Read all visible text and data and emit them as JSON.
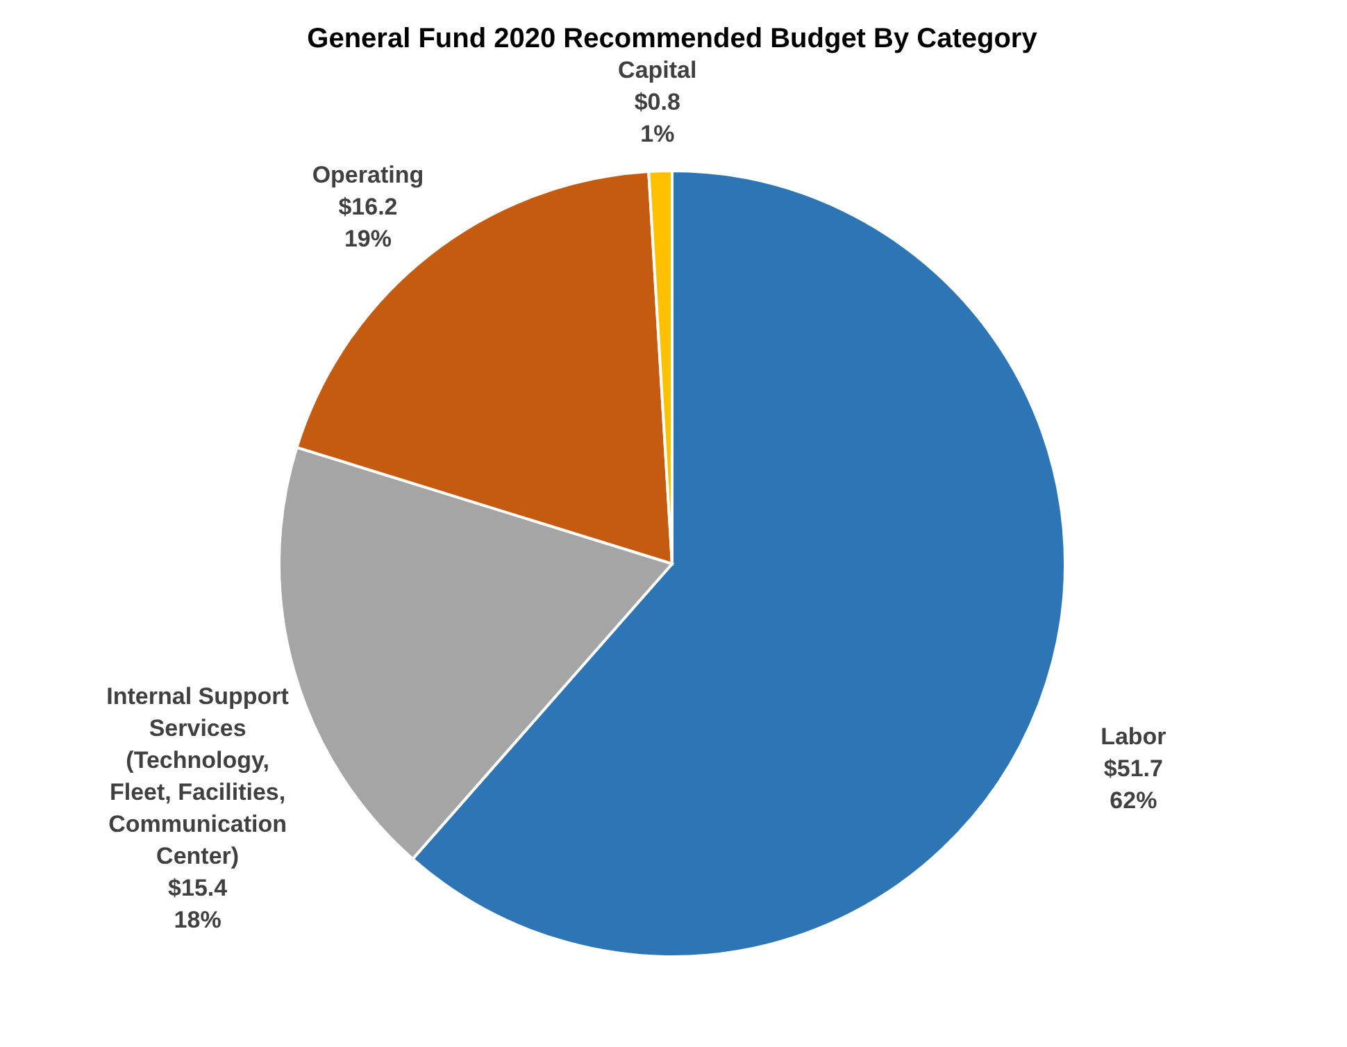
{
  "chart_data": {
    "type": "pie",
    "title": "General Fund 2020 Recommended Budget By Category",
    "categories": [
      "Labor",
      "Internal Support Services (Technology, Fleet, Facilities, Communication Center)",
      "Operating",
      "Capital"
    ],
    "values": [
      51.7,
      15.4,
      16.2,
      0.8
    ],
    "colors": [
      "#2e75b6",
      "#a5a5a5",
      "#c55a11",
      "#ffc000"
    ],
    "value_labels": [
      "$51.7 62%",
      "$15.4 18%",
      "$16.2 19%",
      "$0.8 1%"
    ],
    "legend": false
  }
}
